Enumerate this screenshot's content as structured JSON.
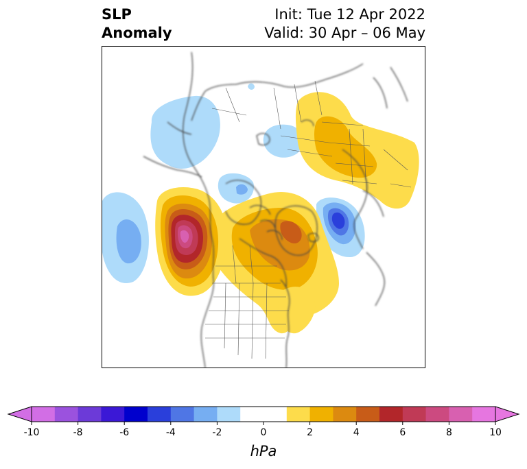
{
  "title": {
    "left_line1": "SLP",
    "left_line2": "Anomaly",
    "right_line1": "Init: Tue 12 Apr 2022",
    "right_line2": "Valid: 30 Apr – 06 May"
  },
  "colorbar": {
    "units": "hPa",
    "min": -10,
    "max": 10,
    "step": 1,
    "extend": "both",
    "ticks": [
      -10,
      -8,
      -6,
      -4,
      -2,
      0,
      2,
      4,
      6,
      8,
      10
    ],
    "tick_labels": [
      "-10",
      "-8",
      "-6",
      "-4",
      "-2",
      "0",
      "2",
      "4",
      "6",
      "8",
      "10"
    ],
    "colors": [
      "#d26ee5",
      "#9b52de",
      "#6c3ad8",
      "#3b18d6",
      "#0000cd",
      "#2a3fdb",
      "#4f76e5",
      "#76aef2",
      "#aedbfa",
      "#ffffff",
      "#ffffff",
      "#fddc4b",
      "#f0b100",
      "#dc8a10",
      "#c85c18",
      "#b2262a",
      "#c03a56",
      "#cc4a80",
      "#d860b0",
      "#e676e0"
    ],
    "over_color": "#e676e0",
    "under_color": "#d26ee5"
  },
  "map": {
    "projection": "polar-stereographic",
    "region": "Northern Hemisphere"
  }
}
